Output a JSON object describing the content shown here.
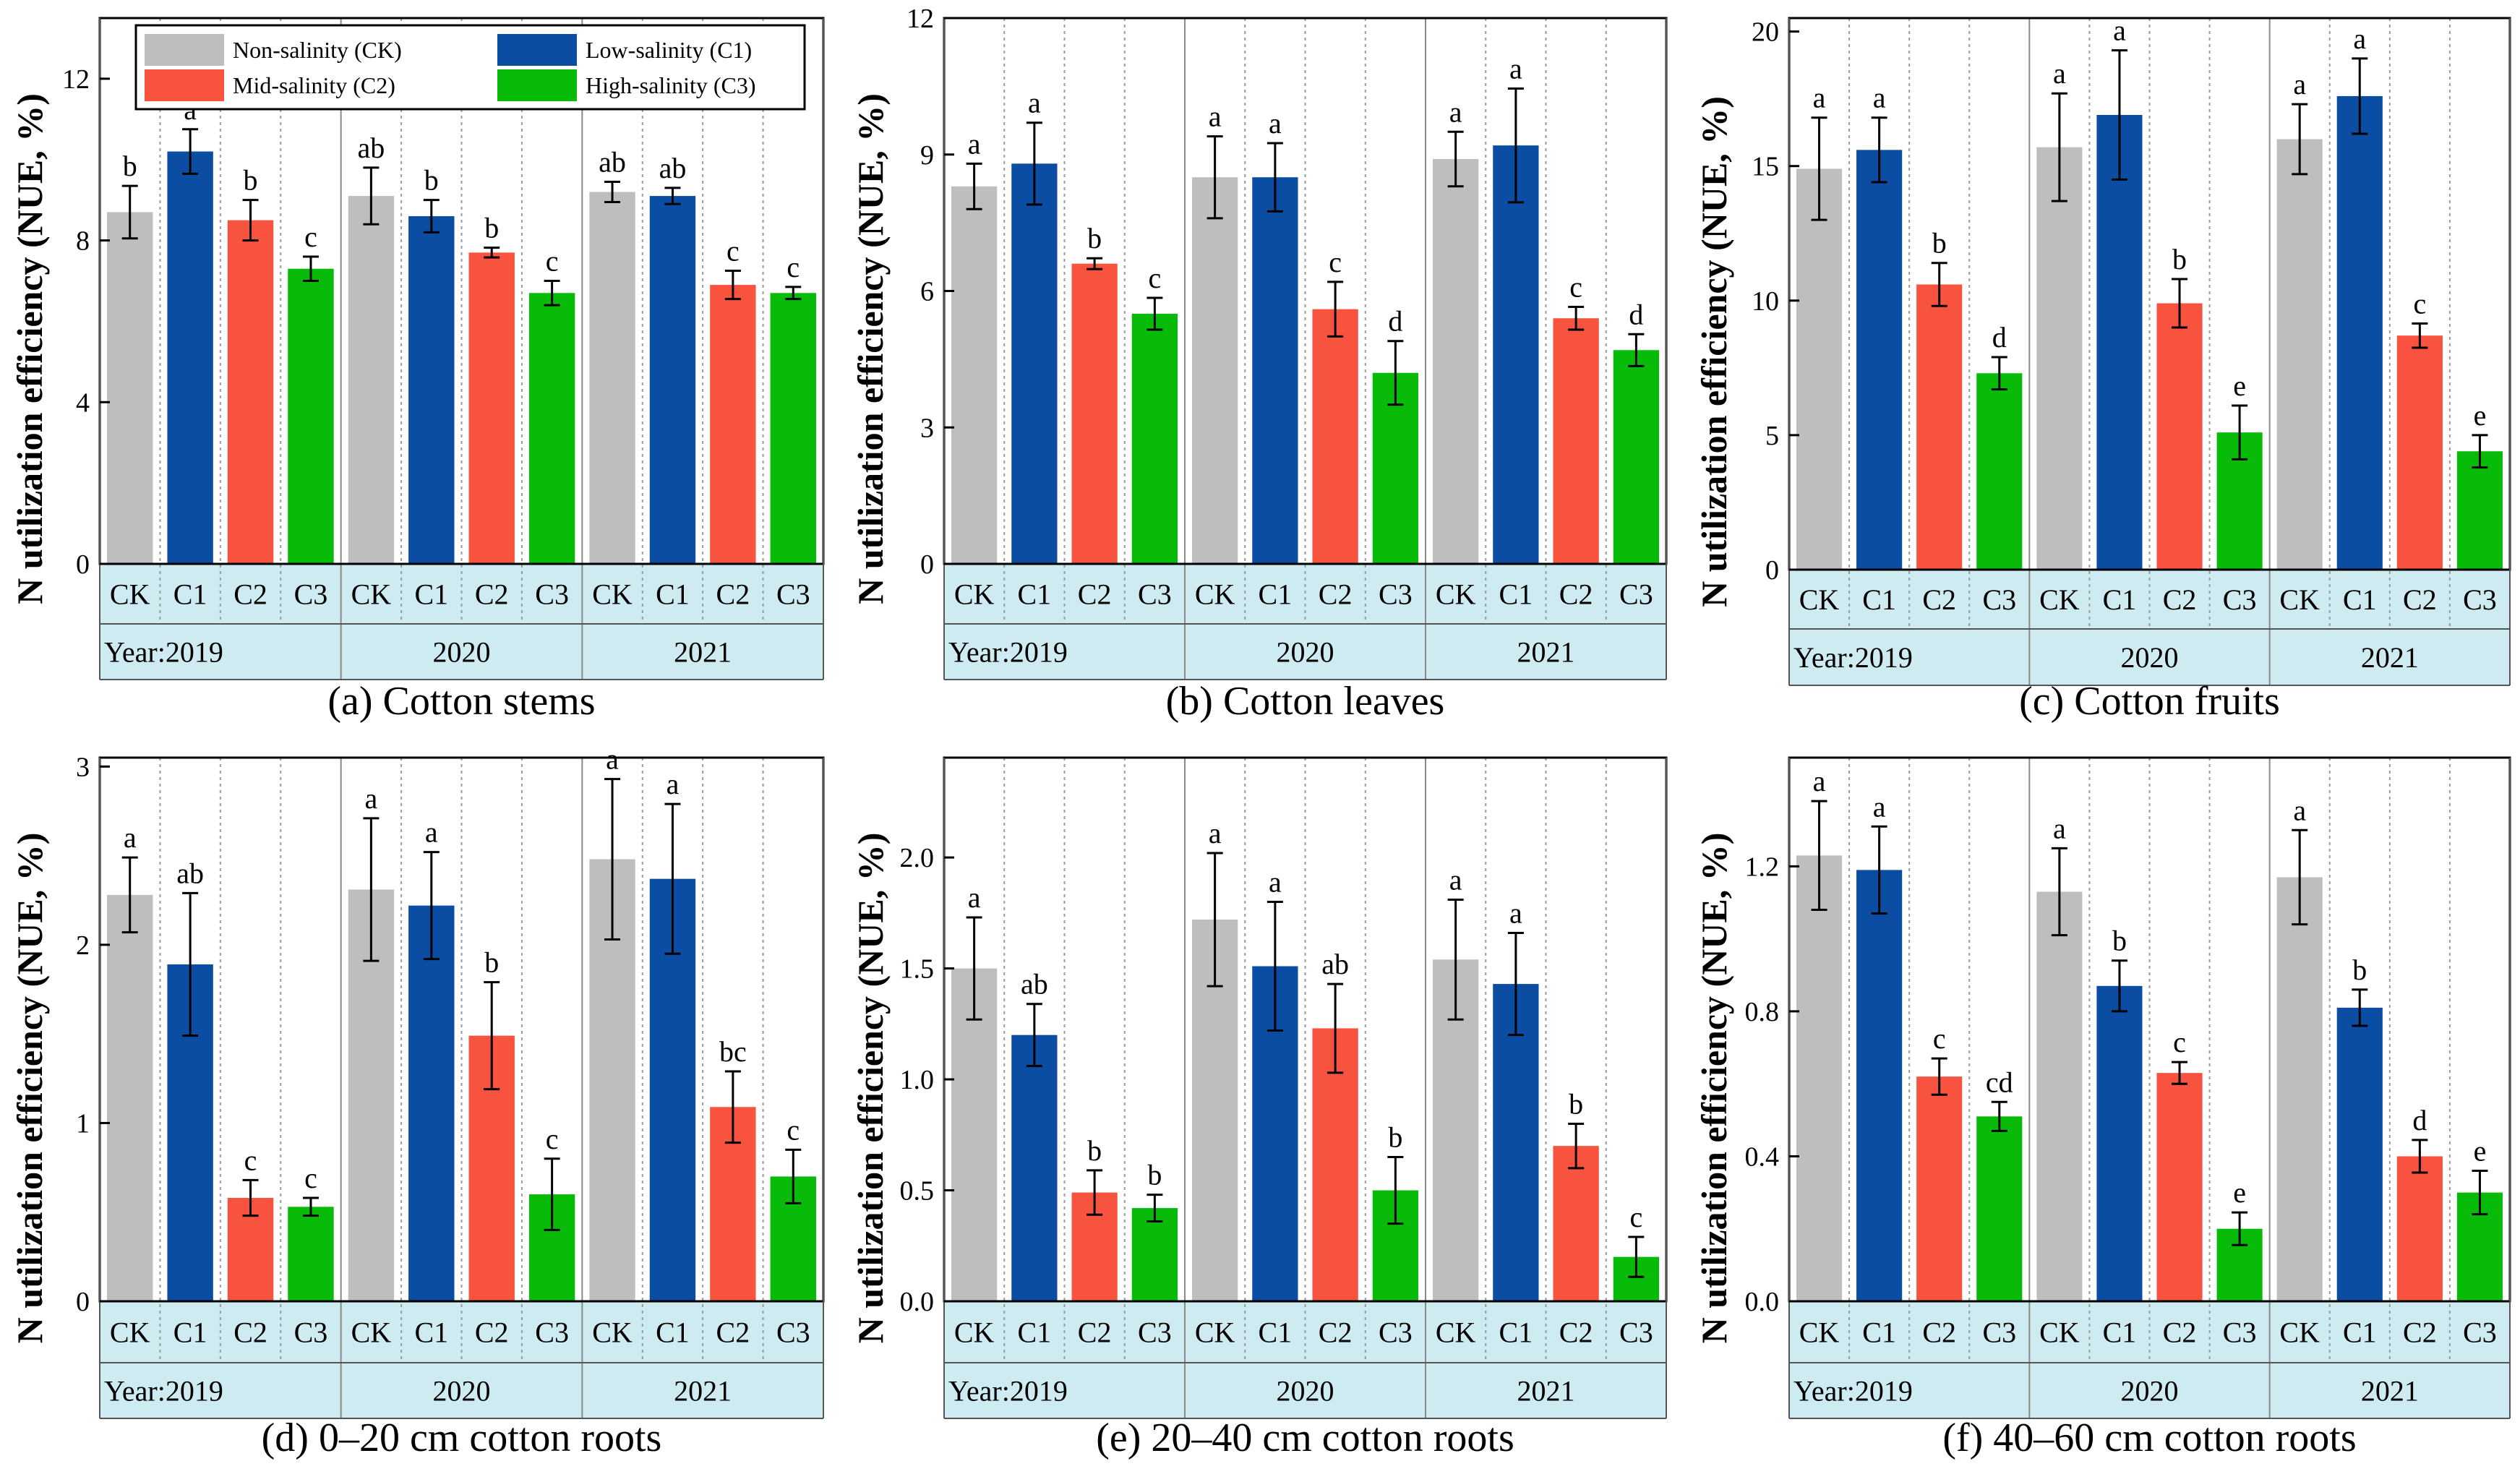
{
  "legend": [
    {
      "label": "Non-salinity (CK)",
      "color": "#BEBEBE"
    },
    {
      "label": "Low-salinity (C1)",
      "color": "#0B4DA2"
    },
    {
      "label": "Mid-salinity (C2)",
      "color": "#F8533F"
    },
    {
      "label": "High-salinity (C3)",
      "color": "#08BB08"
    }
  ],
  "colors": {
    "frame_bg": "#CDEBF0",
    "error_bar": "#000000"
  },
  "chart_data": [
    {
      "type": "bar",
      "title": "(a) Cotton stems",
      "ylabel": "N utilization efficiency (NUE, %)",
      "ylim": [
        0,
        13.5
      ],
      "yticks": [
        "0",
        "4",
        "8",
        "12"
      ],
      "ytick_values": [
        0,
        4,
        8,
        12
      ],
      "categories": [
        "CK",
        "C1",
        "C2",
        "C3"
      ],
      "year_labels": [
        "Year:2019",
        "2020",
        "2021"
      ],
      "values": [
        [
          8.7,
          10.2,
          8.5,
          7.3
        ],
        [
          9.1,
          8.6,
          7.7,
          6.7
        ],
        [
          9.2,
          9.1,
          6.9,
          6.7
        ]
      ],
      "errors": [
        [
          0.65,
          0.55,
          0.5,
          0.3
        ],
        [
          0.7,
          0.4,
          0.12,
          0.3
        ],
        [
          0.25,
          0.2,
          0.35,
          0.15
        ]
      ],
      "letters": [
        [
          "b",
          "a",
          "b",
          "c"
        ],
        [
          "ab",
          "b",
          "b",
          "c"
        ],
        [
          "ab",
          "ab",
          "c",
          "c"
        ]
      ]
    },
    {
      "type": "bar",
      "title": "(b) Cotton leaves",
      "ylabel": "N utilization efficiency (NUE, %)",
      "ylim": [
        0,
        12
      ],
      "yticks": [
        "0",
        "3",
        "6",
        "9",
        "12"
      ],
      "ytick_values": [
        0,
        3,
        6,
        9,
        12
      ],
      "categories": [
        "CK",
        "C1",
        "C2",
        "C3"
      ],
      "year_labels": [
        "Year:2019",
        "2020",
        "2021"
      ],
      "values": [
        [
          8.3,
          8.8,
          6.6,
          5.5
        ],
        [
          8.5,
          8.5,
          5.6,
          4.2
        ],
        [
          8.9,
          9.2,
          5.4,
          4.7
        ]
      ],
      "errors": [
        [
          0.5,
          0.9,
          0.12,
          0.35
        ],
        [
          0.9,
          0.75,
          0.6,
          0.7
        ],
        [
          0.6,
          1.25,
          0.25,
          0.35
        ]
      ],
      "letters": [
        [
          "a",
          "a",
          "b",
          "c"
        ],
        [
          "a",
          "a",
          "c",
          "d"
        ],
        [
          "a",
          "a",
          "c",
          "d"
        ]
      ]
    },
    {
      "type": "bar",
      "title": "(c) Cotton fruits",
      "ylabel": "N utilization efficiency (NUE, %)",
      "ylim": [
        0,
        20.5
      ],
      "yticks": [
        "0",
        "5",
        "10",
        "15",
        "20"
      ],
      "ytick_values": [
        0,
        5,
        10,
        15,
        20
      ],
      "categories": [
        "CK",
        "C1",
        "C2",
        "C3"
      ],
      "year_labels": [
        "Year:2019",
        "2020",
        "2021"
      ],
      "values": [
        [
          14.9,
          15.6,
          10.6,
          7.3
        ],
        [
          15.7,
          16.9,
          9.9,
          5.1
        ],
        [
          16.0,
          17.6,
          8.7,
          4.4
        ]
      ],
      "errors": [
        [
          1.9,
          1.2,
          0.8,
          0.6
        ],
        [
          2.0,
          2.4,
          0.9,
          1.0
        ],
        [
          1.3,
          1.4,
          0.45,
          0.6
        ]
      ],
      "letters": [
        [
          "a",
          "a",
          "b",
          "d"
        ],
        [
          "a",
          "a",
          "b",
          "e"
        ],
        [
          "a",
          "a",
          "c",
          "e"
        ]
      ]
    },
    {
      "type": "bar",
      "title": "(d) 0–20 cm cotton roots",
      "ylabel": "N utilization efficiency (NUE, %)",
      "ylim": [
        0,
        3.05
      ],
      "yticks": [
        "0",
        "1",
        "2",
        "3"
      ],
      "ytick_values": [
        0,
        1,
        2,
        3
      ],
      "categories": [
        "CK",
        "C1",
        "C2",
        "C3"
      ],
      "year_labels": [
        "Year:2019",
        "2020",
        "2021"
      ],
      "values": [
        [
          2.28,
          1.89,
          0.58,
          0.53
        ],
        [
          2.31,
          2.22,
          1.49,
          0.6
        ],
        [
          2.48,
          2.37,
          1.09,
          0.7
        ]
      ],
      "errors": [
        [
          0.21,
          0.4,
          0.1,
          0.05
        ],
        [
          0.4,
          0.3,
          0.3,
          0.2
        ],
        [
          0.45,
          0.42,
          0.2,
          0.15
        ]
      ],
      "letters": [
        [
          "a",
          "ab",
          "c",
          "c"
        ],
        [
          "a",
          "a",
          "b",
          "c"
        ],
        [
          "a",
          "a",
          "bc",
          "c"
        ]
      ]
    },
    {
      "type": "bar",
      "title": "(e) 20–40 cm cotton roots",
      "ylabel": "N utilization efficiency (NUE, %)",
      "ylim": [
        0,
        2.45
      ],
      "yticks": [
        "0.0",
        "0.5",
        "1.0",
        "1.5",
        "2.0"
      ],
      "ytick_values": [
        0,
        0.5,
        1.0,
        1.5,
        2.0
      ],
      "categories": [
        "CK",
        "C1",
        "C2",
        "C3"
      ],
      "year_labels": [
        "Year:2019",
        "2020",
        "2021"
      ],
      "values": [
        [
          1.5,
          1.2,
          0.49,
          0.42
        ],
        [
          1.72,
          1.51,
          1.23,
          0.5
        ],
        [
          1.54,
          1.43,
          0.7,
          0.2
        ]
      ],
      "errors": [
        [
          0.23,
          0.14,
          0.1,
          0.06
        ],
        [
          0.3,
          0.29,
          0.2,
          0.15
        ],
        [
          0.27,
          0.23,
          0.1,
          0.09
        ]
      ],
      "letters": [
        [
          "a",
          "ab",
          "b",
          "b"
        ],
        [
          "a",
          "a",
          "ab",
          "b"
        ],
        [
          "a",
          "a",
          "b",
          "c"
        ]
      ]
    },
    {
      "type": "bar",
      "title": "(f) 40–60 cm cotton roots",
      "ylabel": "N utilization efficiency (NUE, %)",
      "ylim": [
        0,
        1.5
      ],
      "yticks": [
        "0.0",
        "0.4",
        "0.8",
        "1.2"
      ],
      "ytick_values": [
        0,
        0.4,
        0.8,
        1.2
      ],
      "categories": [
        "CK",
        "C1",
        "C2",
        "C3"
      ],
      "year_labels": [
        "Year:2019",
        "2020",
        "2021"
      ],
      "values": [
        [
          1.23,
          1.19,
          0.62,
          0.51
        ],
        [
          1.13,
          0.87,
          0.63,
          0.2
        ],
        [
          1.17,
          0.81,
          0.4,
          0.3
        ]
      ],
      "errors": [
        [
          0.15,
          0.12,
          0.05,
          0.04
        ],
        [
          0.12,
          0.07,
          0.03,
          0.045
        ],
        [
          0.13,
          0.05,
          0.045,
          0.06
        ]
      ],
      "letters": [
        [
          "a",
          "a",
          "c",
          "cd"
        ],
        [
          "a",
          "b",
          "c",
          "e"
        ],
        [
          "a",
          "b",
          "d",
          "e"
        ]
      ]
    }
  ]
}
